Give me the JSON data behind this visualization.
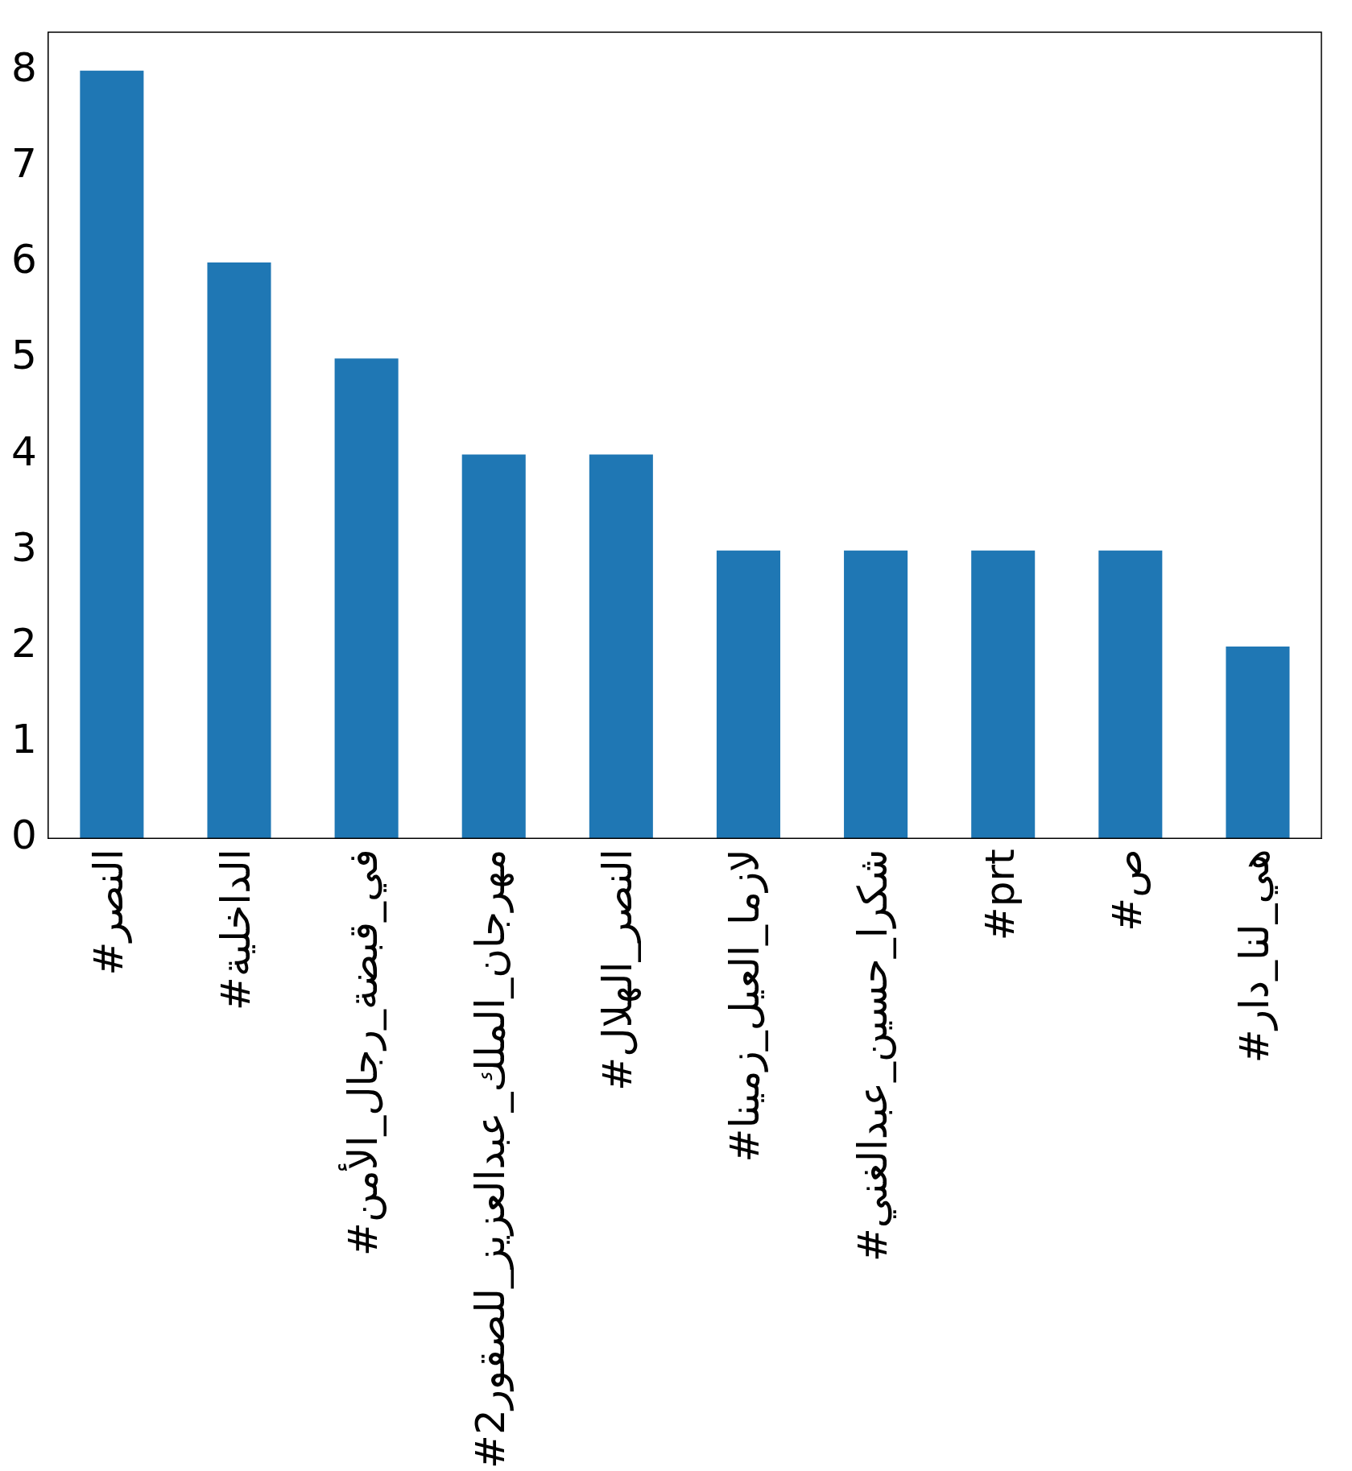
{
  "chart_data": {
    "type": "bar",
    "categories": [
      "#النصر",
      "#الداخلية",
      "#في_قبضة_رجال_الأمن",
      "#مهرجان_الملك_عبدالعزيز_للصقور2",
      "#النصر_الهلال",
      "#لازما_العيل_زمينا",
      "#شكرا_حسين_عبدالغني",
      "#prt",
      "#ص",
      "#هي_لنا_دار"
    ],
    "values": [
      8,
      6,
      5,
      4,
      4,
      3,
      3,
      3,
      3,
      2
    ],
    "color": "#1f77b4",
    "ylim": [
      0,
      8.4
    ],
    "yticks": [
      0,
      1,
      2,
      3,
      4,
      5,
      6,
      7,
      8
    ],
    "grid": false,
    "legend": false
  }
}
